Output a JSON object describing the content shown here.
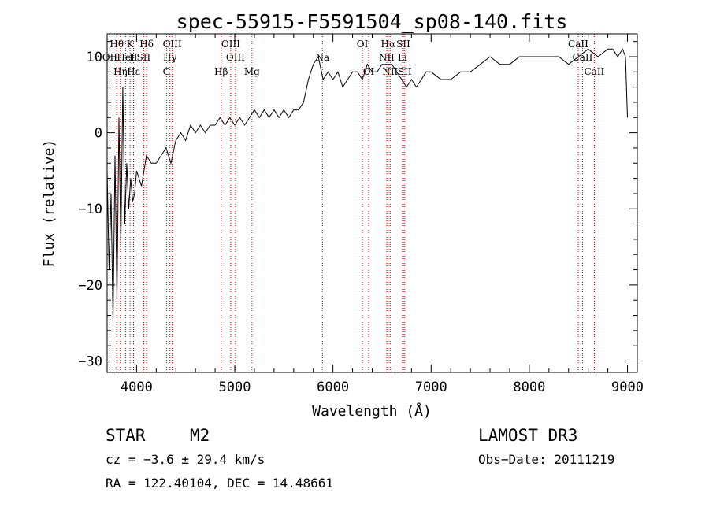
{
  "chart_data": {
    "type": "line",
    "title": "spec-55915-F5591504_sp08-140.fits",
    "xlabel": "Wavelength (Å)",
    "ylabel": "Flux (relative)",
    "xlim": [
      3700,
      9100
    ],
    "ylim": [
      -31.5,
      13
    ],
    "x_ticks": [
      4000,
      5000,
      6000,
      7000,
      8000,
      9000
    ],
    "y_ticks": [
      10,
      0,
      -10,
      -20,
      -30
    ],
    "series": [
      {
        "name": "spectrum",
        "x": [
          3700,
          3720,
          3740,
          3760,
          3780,
          3800,
          3820,
          3840,
          3860,
          3880,
          3900,
          3920,
          3940,
          3960,
          3980,
          4000,
          4050,
          4100,
          4150,
          4200,
          4250,
          4300,
          4350,
          4400,
          4450,
          4500,
          4550,
          4600,
          4650,
          4700,
          4750,
          4800,
          4850,
          4900,
          4950,
          5000,
          5050,
          5100,
          5150,
          5200,
          5250,
          5300,
          5350,
          5400,
          5450,
          5500,
          5550,
          5600,
          5650,
          5700,
          5750,
          5800,
          5850,
          5900,
          5950,
          6000,
          6050,
          6100,
          6150,
          6200,
          6250,
          6300,
          6350,
          6400,
          6450,
          6500,
          6550,
          6600,
          6650,
          6700,
          6750,
          6800,
          6850,
          6900,
          6950,
          7000,
          7100,
          7200,
          7300,
          7400,
          7500,
          7600,
          7700,
          7800,
          7900,
          8000,
          8100,
          8200,
          8300,
          8400,
          8500,
          8600,
          8700,
          8800,
          8850,
          8900,
          8950,
          8980,
          9000
        ],
        "y": [
          -5,
          -18,
          -8,
          -25,
          -3,
          -22,
          2,
          -15,
          6,
          -12,
          -4,
          -10,
          -6,
          -9,
          -8,
          -5,
          -7,
          -3,
          -4,
          -4,
          -3,
          -2,
          -4,
          -1,
          0,
          -1,
          1,
          0,
          1,
          0,
          1,
          1,
          2,
          1,
          2,
          1,
          2,
          1,
          2,
          3,
          2,
          3,
          2,
          3,
          2,
          3,
          2,
          3,
          3,
          4,
          7,
          9,
          10,
          7,
          8,
          7,
          8,
          6,
          7,
          8,
          8,
          7,
          9,
          8,
          8,
          9,
          9,
          9,
          8,
          7,
          6,
          7,
          6,
          7,
          8,
          8,
          7,
          7,
          8,
          8,
          9,
          10,
          9,
          9,
          10,
          10,
          10,
          10,
          10,
          9,
          10,
          11,
          10,
          11,
          11,
          10,
          11,
          10,
          2
        ]
      }
    ],
    "line_markers": [
      {
        "label": "Hθ",
        "wavelength": 3798,
        "row": 0
      },
      {
        "label": "K",
        "wavelength": 3934,
        "row": 0
      },
      {
        "label": "Hδ",
        "wavelength": 4102,
        "row": 0
      },
      {
        "label": "OIII",
        "wavelength": 4363,
        "row": 0
      },
      {
        "label": "OIII",
        "wavelength": 4959,
        "row": 0
      },
      {
        "label": "OI",
        "wavelength": 6300,
        "row": 0
      },
      {
        "label": "Hα",
        "wavelength": 6563,
        "row": 0
      },
      {
        "label": "SII",
        "wavelength": 6717,
        "row": 0
      },
      {
        "label": "CaII",
        "wavelength": 8498,
        "row": 0
      },
      {
        "label": "OII",
        "wavelength": 3727,
        "row": 1
      },
      {
        "label": "H",
        "wavelength": 3968,
        "row": 1
      },
      {
        "label": "HeI",
        "wavelength": 3889,
        "row": 1
      },
      {
        "label": "SII",
        "wavelength": 4072,
        "row": 1
      },
      {
        "label": "Hγ",
        "wavelength": 4340,
        "row": 1
      },
      {
        "label": "OIII",
        "wavelength": 5007,
        "row": 1
      },
      {
        "label": "Na",
        "wavelength": 5893,
        "row": 1
      },
      {
        "label": "NII",
        "wavelength": 6548,
        "row": 1
      },
      {
        "label": "Li",
        "wavelength": 6708,
        "row": 1
      },
      {
        "label": "CaII",
        "wavelength": 8542,
        "row": 1
      },
      {
        "label": "Hε",
        "wavelength": 3970,
        "row": 2
      },
      {
        "label": "Hη",
        "wavelength": 3835,
        "row": 2
      },
      {
        "label": "G",
        "wavelength": 4305,
        "row": 2
      },
      {
        "label": "Hβ",
        "wavelength": 4861,
        "row": 2
      },
      {
        "label": "Mg",
        "wavelength": 5175,
        "row": 2
      },
      {
        "label": "OI",
        "wavelength": 6364,
        "row": 2
      },
      {
        "label": "NII",
        "wavelength": 6583,
        "row": 2
      },
      {
        "label": "SII",
        "wavelength": 6731,
        "row": 2
      },
      {
        "label": "CaII",
        "wavelength": 8662,
        "row": 2
      }
    ]
  },
  "info": {
    "class": "STAR",
    "subclass": "M2",
    "survey": "LAMOST DR3",
    "cz": "cz = −3.6 ± 29.4 km/s",
    "obs_date": "Obs−Date: 20111219",
    "radec": "RA = 122.40104, DEC =  14.48661"
  },
  "colors": {
    "line": "#000000",
    "marker": "#cc0000"
  }
}
